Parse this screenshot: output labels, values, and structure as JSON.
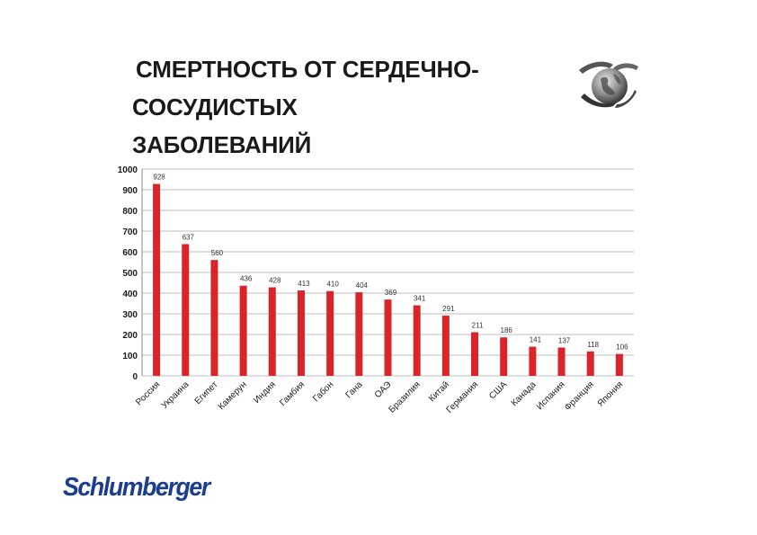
{
  "title_lines": [
    "СМЕРТНОСТЬ ОТ СЕРДЕЧНО-",
    "СОСУДИСТЫХ",
    "ЗАБОЛЕВАНИЙ"
  ],
  "brand": "Schlumberger",
  "logo_icon": "globe-in-hands-icon",
  "colors": {
    "bar": "#d9252a",
    "grid": "#bfbfbf",
    "text": "#1a1a1a",
    "brand": "#1a3d8f"
  },
  "chart_data": {
    "type": "bar",
    "categories": [
      "Россия",
      "Украина",
      "Египет",
      "Камерун",
      "Индия",
      "Гамбия",
      "Габон",
      "Гана",
      "ОАЭ",
      "Бразилия",
      "Китай",
      "Германия",
      "США",
      "Канада",
      "Испания",
      "Франция",
      "Япония"
    ],
    "values": [
      928,
      637,
      560,
      436,
      428,
      413,
      410,
      404,
      369,
      341,
      291,
      211,
      186,
      141,
      137,
      118,
      106
    ],
    "ylim": [
      0,
      1000
    ],
    "yticks": [
      0,
      100,
      200,
      300,
      400,
      500,
      600,
      700,
      800,
      900,
      1000
    ],
    "grid": true,
    "legend": "none"
  }
}
